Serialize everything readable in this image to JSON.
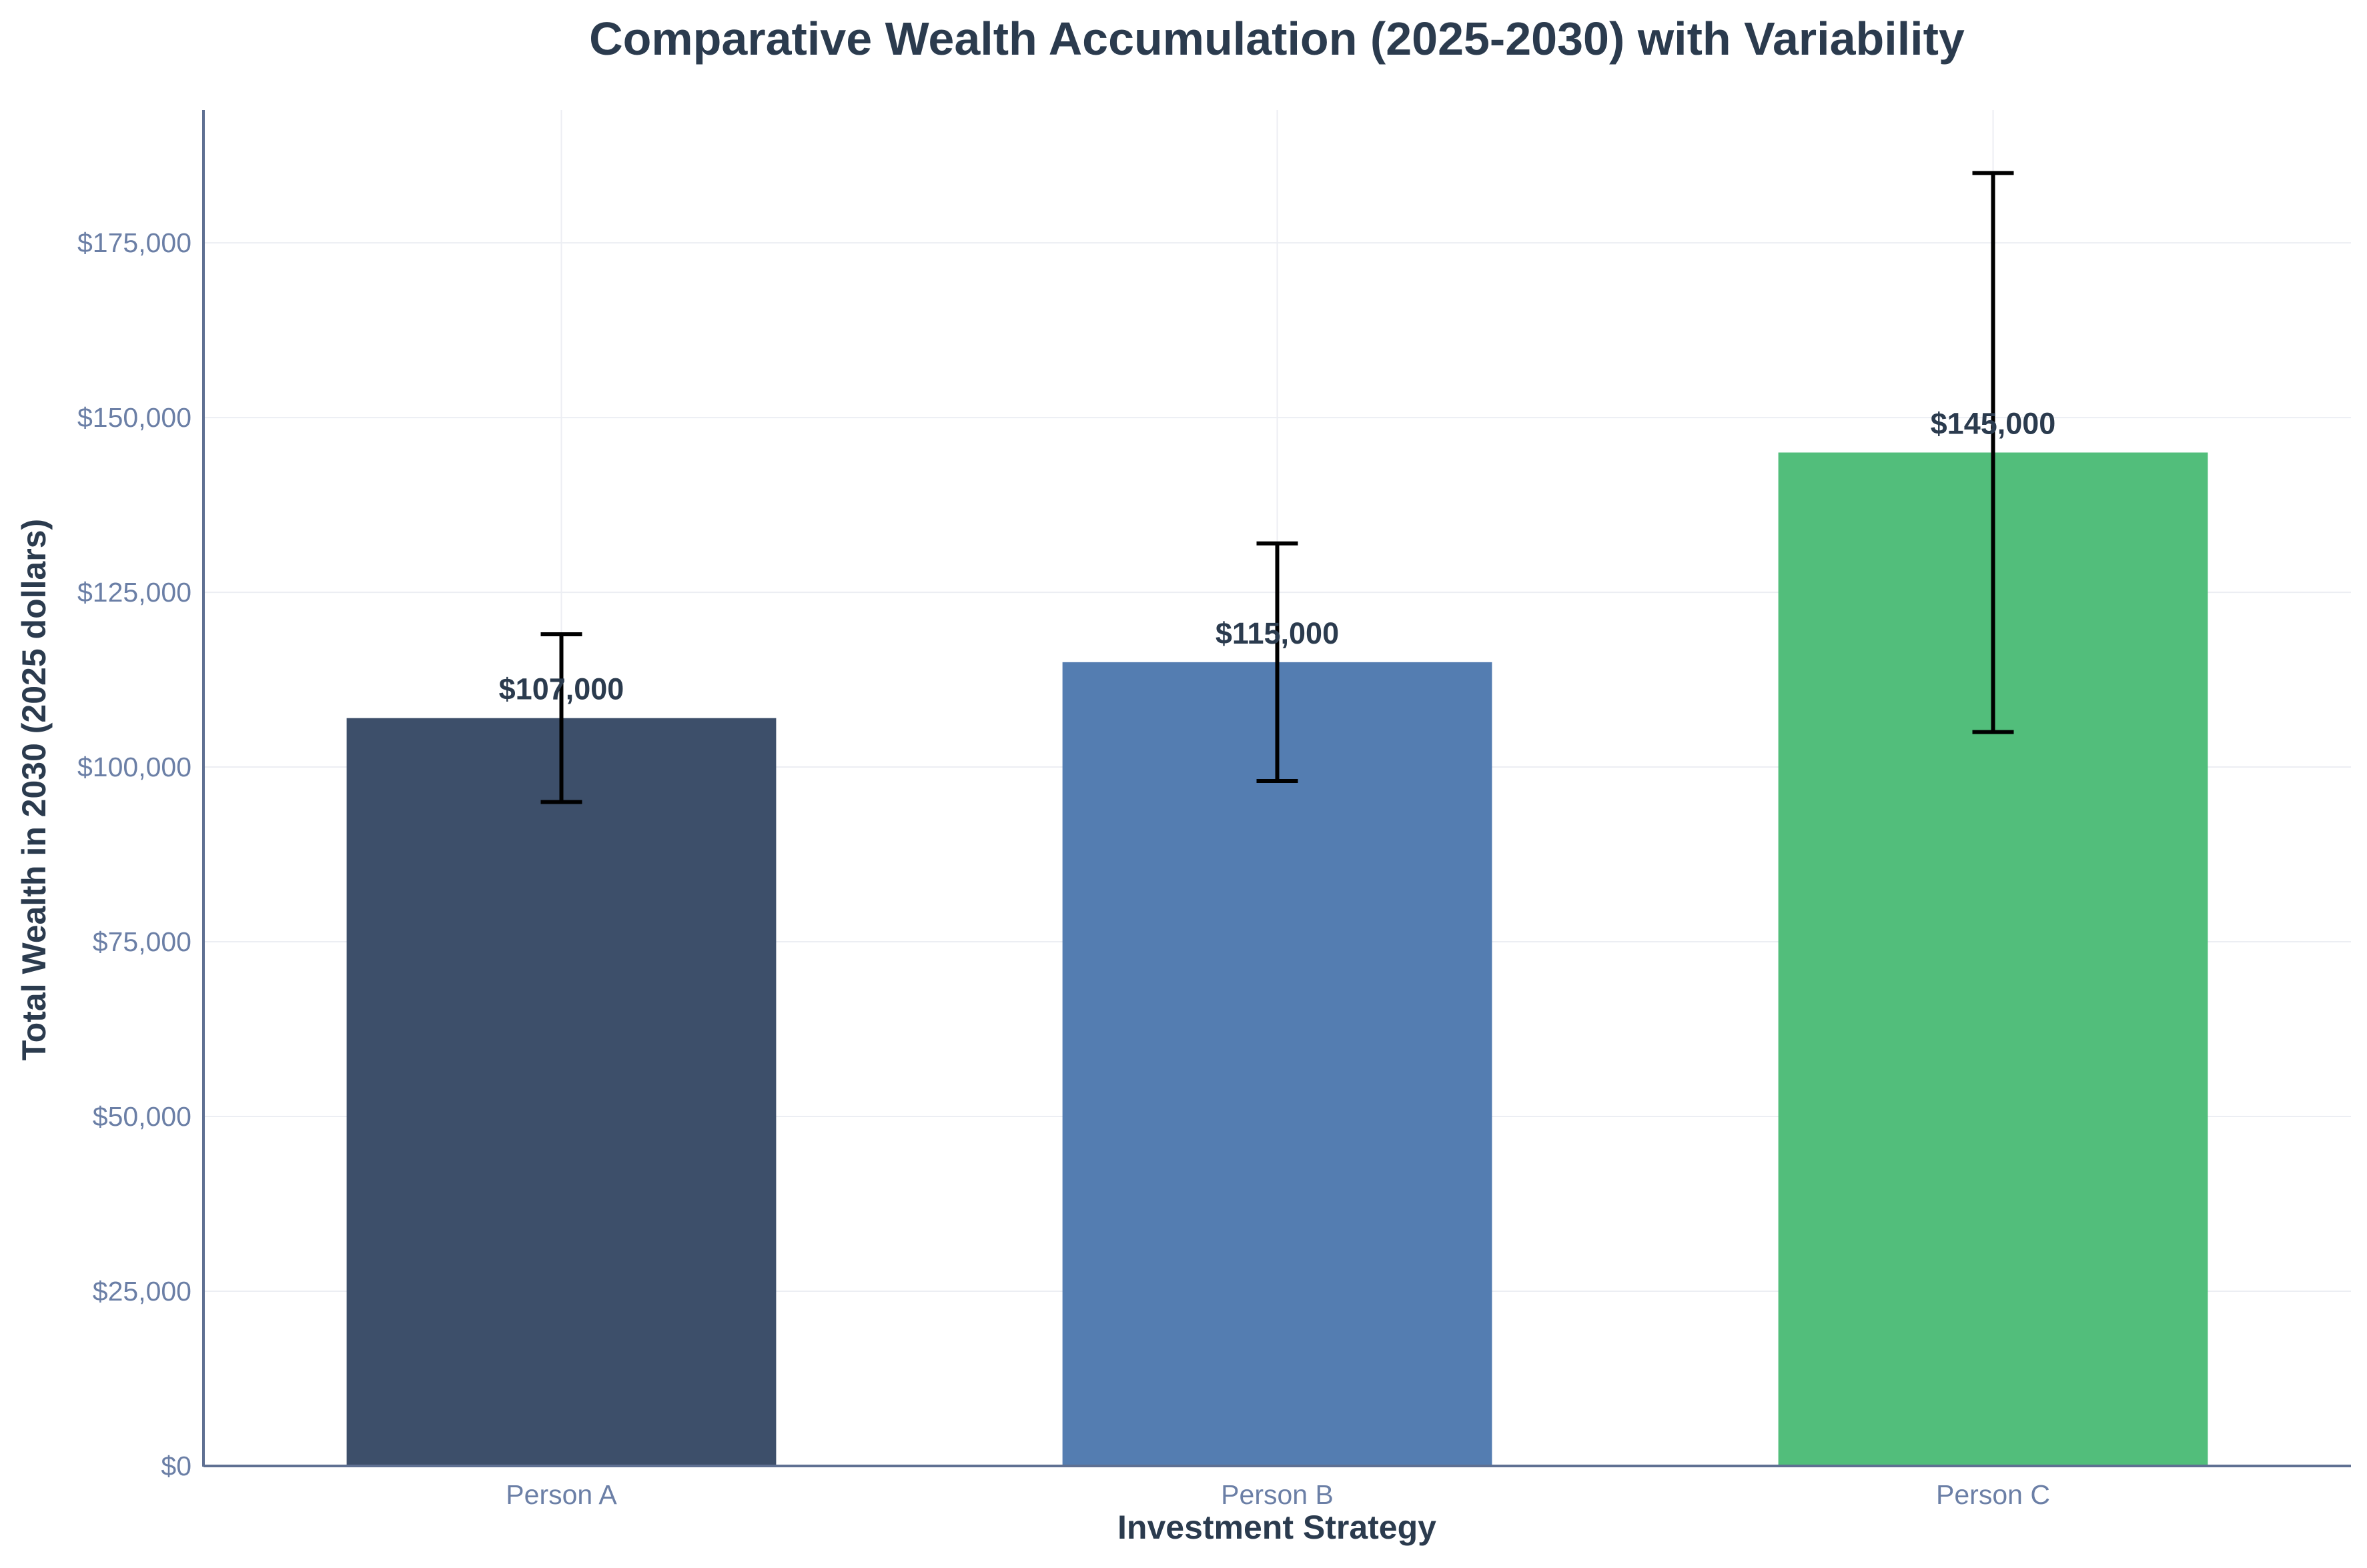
{
  "chart_data": {
    "type": "bar",
    "title": "Comparative Wealth Accumulation (2025-2030) with Variability",
    "xlabel": "Investment Strategy",
    "ylabel": "Total Wealth in 2030 (2025 dollars)",
    "categories": [
      "Person A",
      "Person B",
      "Person C"
    ],
    "values": [
      107000,
      115000,
      145000
    ],
    "error_low": [
      95000,
      98000,
      105000
    ],
    "error_high": [
      119000,
      132000,
      185000
    ],
    "data_labels": [
      "$107,000",
      "$115,000",
      "$145,000"
    ],
    "colors": [
      "#3d4f6a",
      "#547db1",
      "#52be7b"
    ],
    "ylim": [
      0,
      194000
    ],
    "yticks": [
      0,
      25000,
      50000,
      75000,
      100000,
      125000,
      150000,
      175000
    ],
    "ytick_labels": [
      "$0",
      "$25,000",
      "$50,000",
      "$75,000",
      "$100,000",
      "$125,000",
      "$150,000",
      "$175,000"
    ],
    "grid": true,
    "legend": "none"
  }
}
